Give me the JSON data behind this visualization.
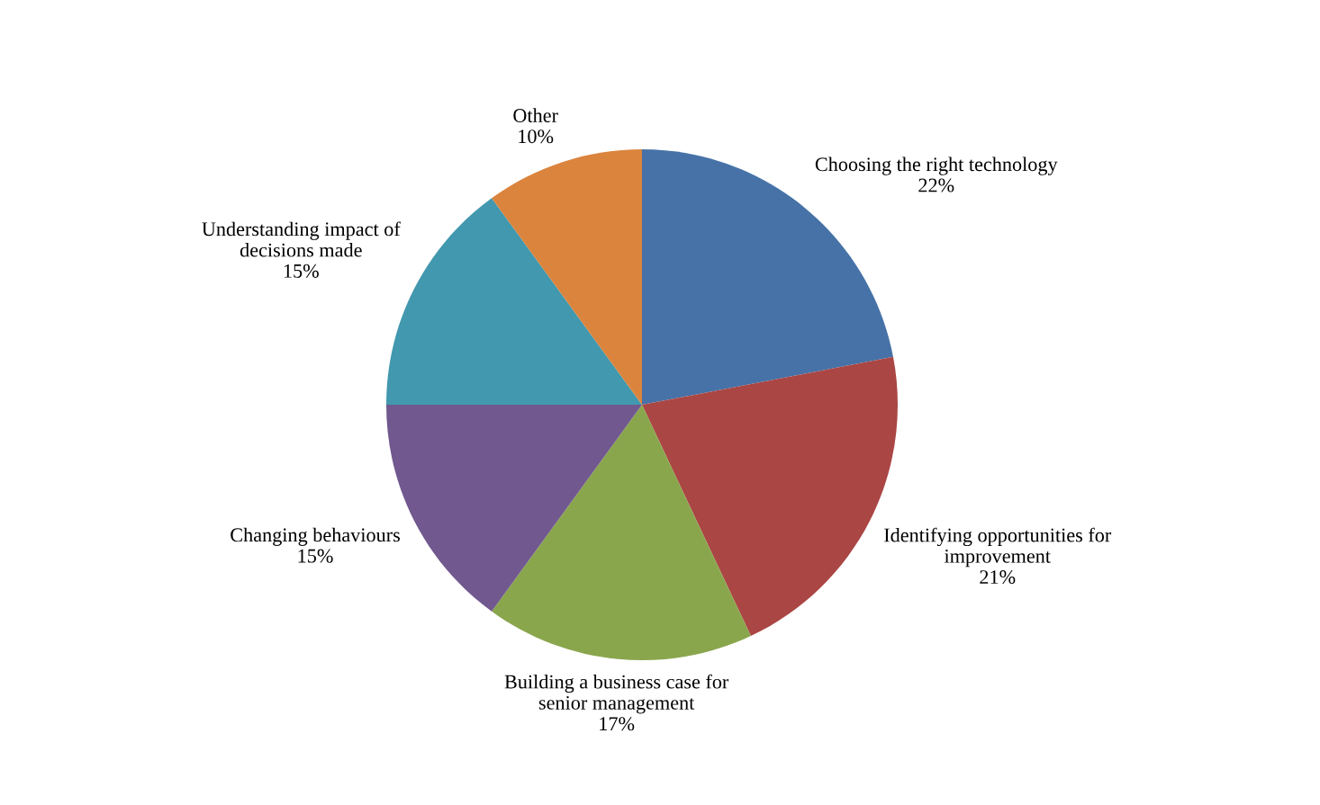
{
  "chart_data": {
    "type": "pie",
    "categories": [
      "Choosing the right technology",
      "Identifying opportunities for\nimprovement",
      "Building a business case for\nsenior management",
      "Changing behaviours",
      "Understanding impact of\ndecisions made",
      "Other"
    ],
    "values": [
      22,
      21,
      17,
      15,
      15,
      10
    ],
    "value_labels": [
      "22%",
      "21%",
      "17%",
      "15%",
      "15%",
      "10%"
    ],
    "colors": [
      "#4672a7",
      "#aa4644",
      "#8aa64d",
      "#71588e",
      "#4298ae",
      "#db843d"
    ]
  }
}
